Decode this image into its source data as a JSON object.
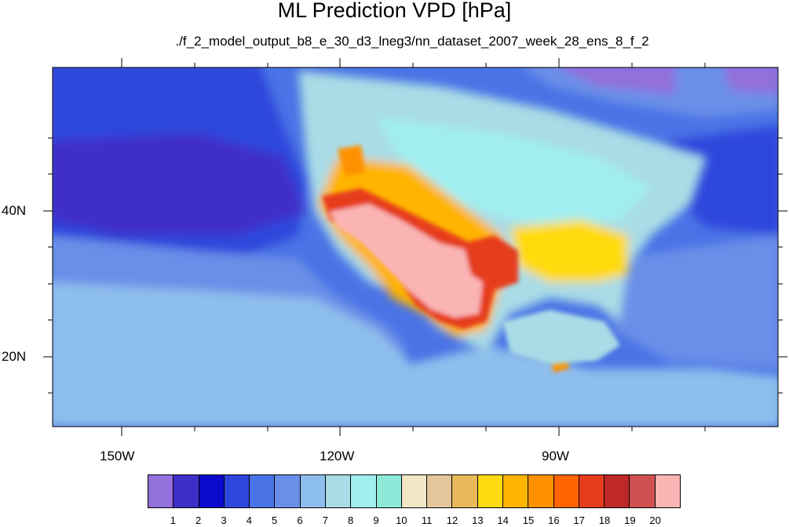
{
  "title": "ML Prediction VPD [hPa]",
  "subtitle": "./f_2_model_output_b8_e_30_d3_lneg3/nn_dataset_2007_week_28_ens_8_f_2",
  "axes": {
    "lon_labels": [
      "150W",
      "120W",
      "90W"
    ],
    "lat_labels": [
      "40N",
      "20N"
    ]
  },
  "colorbar": {
    "labels": [
      "1",
      "2",
      "3",
      "4",
      "5",
      "6",
      "7",
      "8",
      "9",
      "10",
      "11",
      "12",
      "13",
      "14",
      "15",
      "16",
      "17",
      "18",
      "19",
      "20"
    ],
    "colors": [
      "#9370DB",
      "#3F2FC8",
      "#0A0ACD",
      "#2E46DC",
      "#4A73E6",
      "#6A8FE8",
      "#8EBEEC",
      "#A9DCE6",
      "#A0EEF0",
      "#8EEAD8",
      "#F2E6C4",
      "#E3C79A",
      "#E8B85A",
      "#FFDA10",
      "#FFB400",
      "#FF9100",
      "#FF6400",
      "#E63C1E",
      "#BE2828",
      "#D05050",
      "#FAB4B4"
    ]
  }
}
